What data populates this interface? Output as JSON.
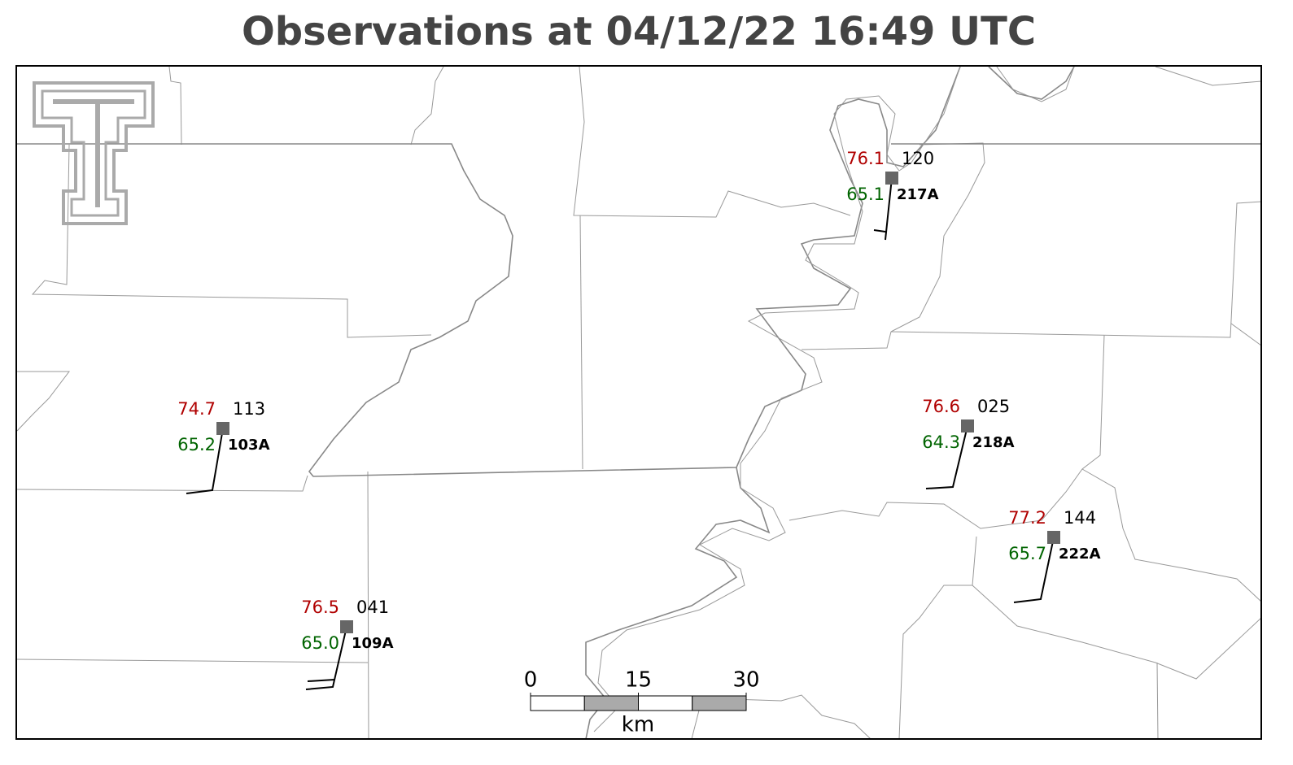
{
  "title": "Observations at 04/12/22 16:49 UTC",
  "stations": [
    {
      "id": "217A",
      "temperature": "76.1",
      "dewpoint": "65.1",
      "pressure": "120"
    },
    {
      "id": "103A",
      "temperature": "74.7",
      "dewpoint": "65.2",
      "pressure": "113"
    },
    {
      "id": "109A",
      "temperature": "76.5",
      "dewpoint": "65.0",
      "pressure": "041"
    },
    {
      "id": "218A",
      "temperature": "76.6",
      "dewpoint": "64.3",
      "pressure": "025"
    },
    {
      "id": "222A",
      "temperature": "77.2",
      "dewpoint": "65.7",
      "pressure": "144"
    }
  ],
  "scale_bar": {
    "ticks": [
      0,
      15,
      30
    ],
    "unit": "km"
  }
}
